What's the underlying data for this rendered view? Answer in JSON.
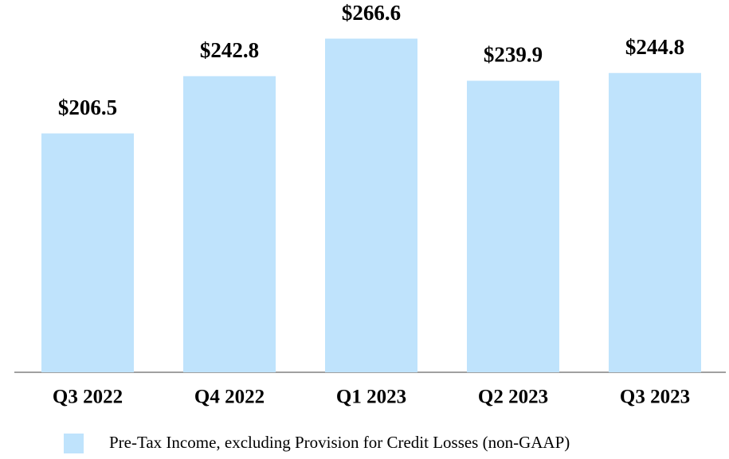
{
  "chart_data": {
    "type": "bar",
    "categories": [
      "Q3 2022",
      "Q4 2022",
      "Q1 2023",
      "Q2 2023",
      "Q3 2023"
    ],
    "series": [
      {
        "name": "Pre-Tax Income, excluding Provision for Credit Losses (non-GAAP)",
        "color": "#bfe3fc",
        "values": [
          206.5,
          242.8,
          266.6,
          239.9,
          244.8
        ],
        "value_labels": [
          "$206.5",
          "$242.8",
          "$266.6",
          "$239.9",
          "$244.8"
        ]
      }
    ],
    "ylim": [
      55,
      280
    ]
  }
}
